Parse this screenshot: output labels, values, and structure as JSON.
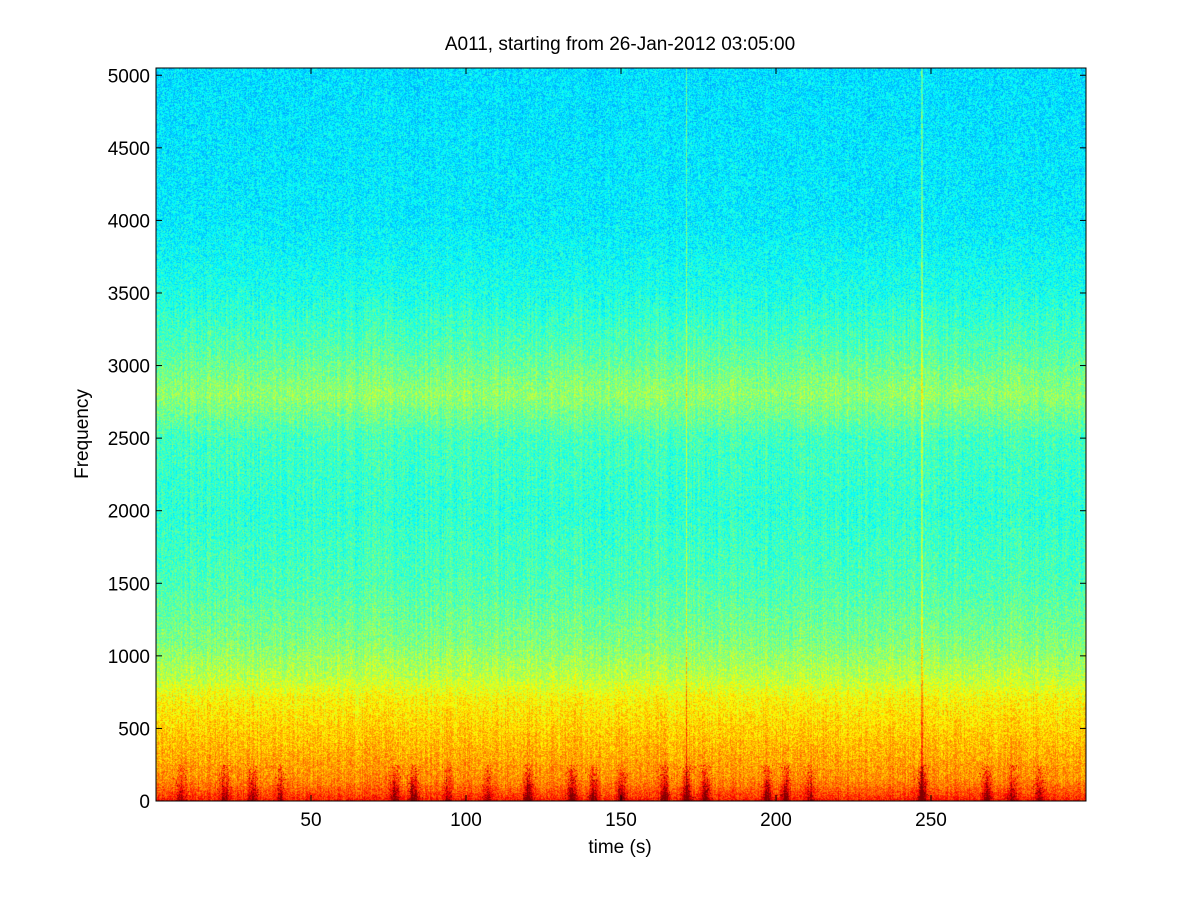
{
  "chart_data": {
    "type": "heatmap",
    "title": "A011, starting from 26-Jan-2012 03:05:00",
    "xlabel": "time (s)",
    "ylabel": "Frequency",
    "xlim": [
      0,
      300
    ],
    "ylim": [
      0,
      5050
    ],
    "x_ticks": [
      50,
      100,
      150,
      200,
      250
    ],
    "y_ticks": [
      0,
      500,
      1000,
      1500,
      2000,
      2500,
      3000,
      3500,
      4000,
      4500,
      5000
    ],
    "colormap": "jet",
    "grid": false,
    "band_intensity": [
      {
        "freq": 0,
        "level": 0.86
      },
      {
        "freq": 60,
        "level": 0.8
      },
      {
        "freq": 150,
        "level": 0.74
      },
      {
        "freq": 300,
        "level": 0.71
      },
      {
        "freq": 500,
        "level": 0.67
      },
      {
        "freq": 700,
        "level": 0.63
      },
      {
        "freq": 850,
        "level": 0.56
      },
      {
        "freq": 1100,
        "level": 0.5
      },
      {
        "freq": 1500,
        "level": 0.45
      },
      {
        "freq": 2000,
        "level": 0.42
      },
      {
        "freq": 2500,
        "level": 0.44
      },
      {
        "freq": 2800,
        "level": 0.52
      },
      {
        "freq": 3100,
        "level": 0.46
      },
      {
        "freq": 3500,
        "level": 0.4
      },
      {
        "freq": 4000,
        "level": 0.36
      },
      {
        "freq": 5050,
        "level": 0.345
      }
    ],
    "transient_events": [
      {
        "t": 8,
        "strength": 0.6
      },
      {
        "t": 22,
        "strength": 0.7
      },
      {
        "t": 31,
        "strength": 0.8
      },
      {
        "t": 40,
        "strength": 0.6
      },
      {
        "t": 77,
        "strength": 0.8
      },
      {
        "t": 83,
        "strength": 0.9
      },
      {
        "t": 94,
        "strength": 0.5
      },
      {
        "t": 107,
        "strength": 0.5
      },
      {
        "t": 120,
        "strength": 0.9
      },
      {
        "t": 134,
        "strength": 0.9
      },
      {
        "t": 141,
        "strength": 0.8
      },
      {
        "t": 150,
        "strength": 0.7
      },
      {
        "t": 164,
        "strength": 0.9
      },
      {
        "t": 171,
        "strength": 1.0
      },
      {
        "t": 177,
        "strength": 0.9
      },
      {
        "t": 197,
        "strength": 0.9
      },
      {
        "t": 203,
        "strength": 0.9
      },
      {
        "t": 211,
        "strength": 0.6
      },
      {
        "t": 247,
        "strength": 1.0
      },
      {
        "t": 268,
        "strength": 0.8
      },
      {
        "t": 276,
        "strength": 0.7
      },
      {
        "t": 285,
        "strength": 0.6
      }
    ]
  }
}
